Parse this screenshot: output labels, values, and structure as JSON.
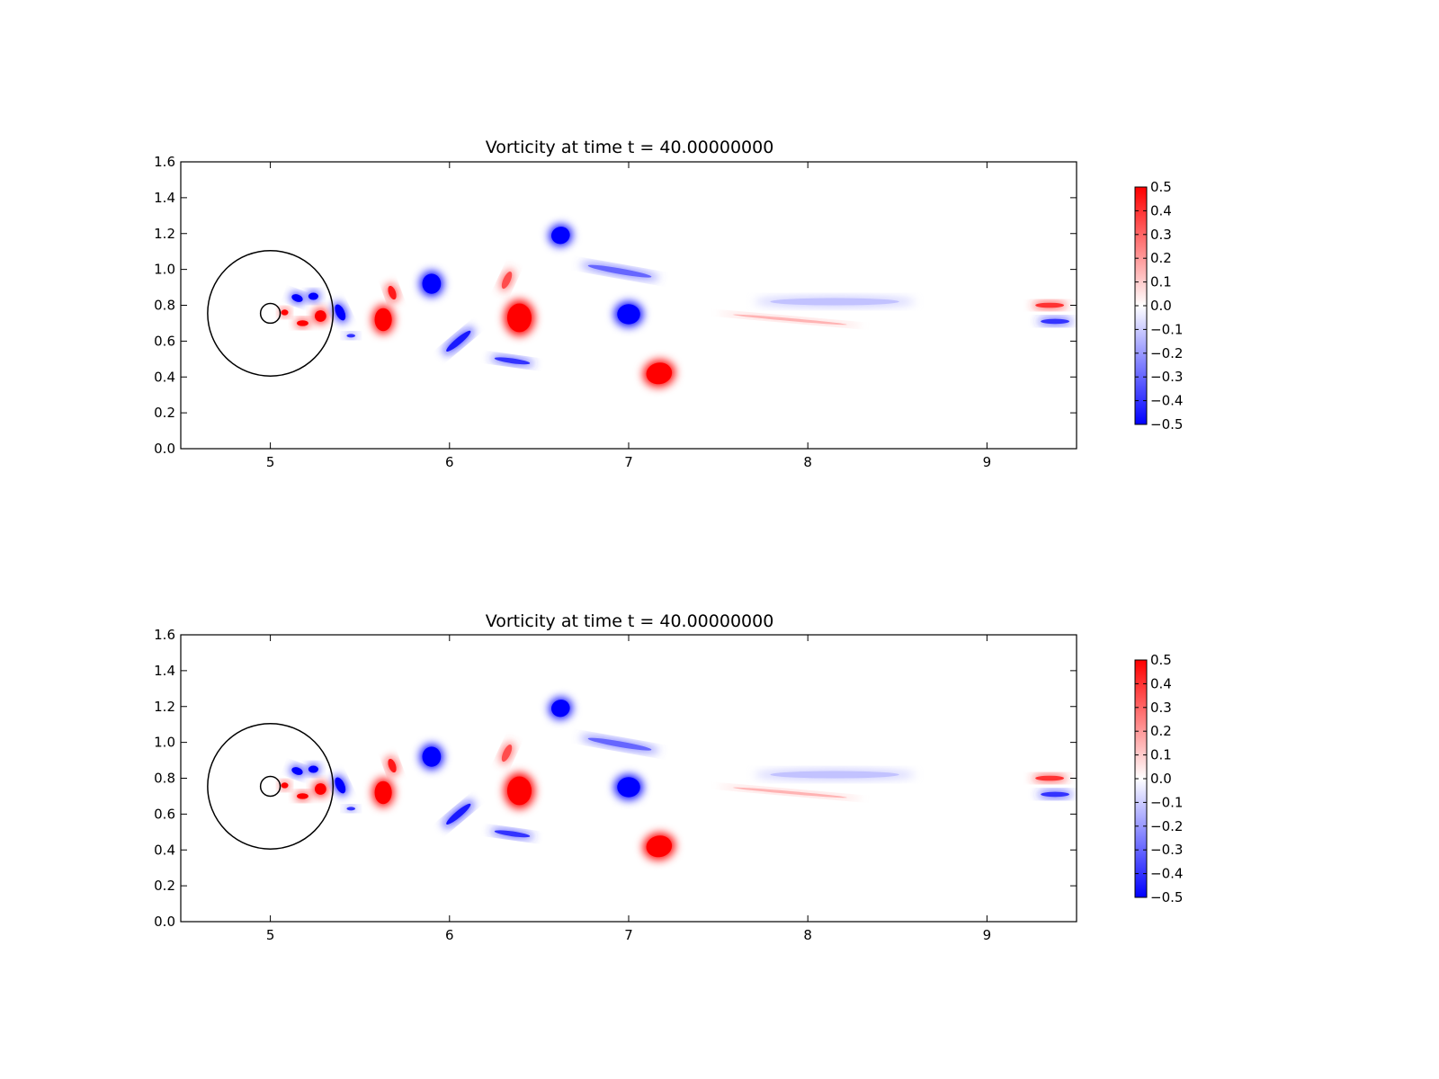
{
  "chart_data": [
    {
      "type": "heatmap",
      "title": "Vorticity at time t =    40.00000000",
      "xlabel": "",
      "ylabel": "",
      "xlim": [
        4.5,
        9.5
      ],
      "ylim": [
        0.0,
        1.6
      ],
      "x_ticks": [
        5,
        6,
        7,
        8,
        9
      ],
      "y_ticks": [
        0.0,
        0.2,
        0.4,
        0.6,
        0.8,
        1.0,
        1.2,
        1.4,
        1.6
      ],
      "x_tick_labels": [
        "5",
        "6",
        "7",
        "8",
        "9"
      ],
      "y_tick_labels": [
        "0.0",
        "0.2",
        "0.4",
        "0.6",
        "0.8",
        "1.0",
        "1.2",
        "1.4",
        "1.6"
      ],
      "grid": false,
      "colormap": "bwr",
      "colors": {
        "negative": "#0000ff",
        "zero": "#ffffff",
        "positive": "#ff0000"
      },
      "colorbar": {
        "range": [
          -0.5,
          0.5
        ],
        "ticks": [
          -0.5,
          -0.4,
          -0.3,
          -0.2,
          -0.1,
          0.0,
          0.1,
          0.2,
          0.3,
          0.4,
          0.5
        ],
        "tick_labels": [
          "−0.5",
          "−0.4",
          "−0.3",
          "−0.2",
          "−0.1",
          "0.0",
          "0.1",
          "0.2",
          "0.3",
          "0.4",
          "0.5"
        ],
        "placement": "right"
      },
      "circles": [
        {
          "center": [
            5.0,
            0.755
          ],
          "radius": 0.35
        },
        {
          "center": [
            5.0,
            0.755
          ],
          "radius": 0.055
        }
      ],
      "vortices": [
        {
          "x": 5.08,
          "y": 0.76,
          "w": 0.05,
          "h": 0.04,
          "vorticity": 0.5,
          "angle": 0
        },
        {
          "x": 5.15,
          "y": 0.84,
          "w": 0.08,
          "h": 0.05,
          "vorticity": -0.5,
          "angle": -20
        },
        {
          "x": 5.24,
          "y": 0.85,
          "w": 0.07,
          "h": 0.05,
          "vorticity": -0.5,
          "angle": 0
        },
        {
          "x": 5.28,
          "y": 0.74,
          "w": 0.08,
          "h": 0.08,
          "vorticity": 0.5,
          "angle": 0
        },
        {
          "x": 5.18,
          "y": 0.7,
          "w": 0.08,
          "h": 0.04,
          "vorticity": 0.5,
          "angle": 0
        },
        {
          "x": 5.39,
          "y": 0.76,
          "w": 0.06,
          "h": 0.12,
          "vorticity": -0.5,
          "angle": 25
        },
        {
          "x": 5.45,
          "y": 0.63,
          "w": 0.06,
          "h": 0.025,
          "vorticity": -0.4,
          "angle": 0
        },
        {
          "x": 5.63,
          "y": 0.72,
          "w": 0.12,
          "h": 0.16,
          "vorticity": 0.5,
          "angle": 0
        },
        {
          "x": 5.68,
          "y": 0.87,
          "w": 0.05,
          "h": 0.1,
          "vorticity": 0.45,
          "angle": 20
        },
        {
          "x": 5.9,
          "y": 0.92,
          "w": 0.13,
          "h": 0.14,
          "vorticity": -0.5,
          "angle": 0
        },
        {
          "x": 6.05,
          "y": 0.6,
          "w": 0.22,
          "h": 0.045,
          "vorticity": -0.45,
          "angle": 40
        },
        {
          "x": 6.35,
          "y": 0.49,
          "w": 0.25,
          "h": 0.035,
          "vorticity": -0.4,
          "angle": -8
        },
        {
          "x": 6.39,
          "y": 0.73,
          "w": 0.17,
          "h": 0.2,
          "vorticity": 0.5,
          "angle": 0
        },
        {
          "x": 6.32,
          "y": 0.94,
          "w": 0.05,
          "h": 0.13,
          "vorticity": 0.35,
          "angle": -25
        },
        {
          "x": 6.62,
          "y": 1.19,
          "w": 0.13,
          "h": 0.12,
          "vorticity": -0.5,
          "angle": 15
        },
        {
          "x": 6.95,
          "y": 0.99,
          "w": 0.45,
          "h": 0.04,
          "vorticity": -0.3,
          "angle": -10
        },
        {
          "x": 7.0,
          "y": 0.75,
          "w": 0.16,
          "h": 0.14,
          "vorticity": -0.5,
          "angle": 0
        },
        {
          "x": 7.17,
          "y": 0.42,
          "w": 0.18,
          "h": 0.15,
          "vorticity": 0.5,
          "angle": 10
        },
        {
          "x": 8.15,
          "y": 0.82,
          "w": 0.9,
          "h": 0.05,
          "vorticity": -0.12,
          "angle": 0
        },
        {
          "x": 7.9,
          "y": 0.72,
          "w": 0.8,
          "h": 0.02,
          "vorticity": 0.15,
          "angle": -5
        },
        {
          "x": 9.35,
          "y": 0.8,
          "w": 0.2,
          "h": 0.035,
          "vorticity": 0.4,
          "angle": 0
        },
        {
          "x": 9.38,
          "y": 0.71,
          "w": 0.2,
          "h": 0.035,
          "vorticity": -0.4,
          "angle": 0
        }
      ]
    },
    {
      "type": "heatmap",
      "title": "Vorticity at time t =    40.00000000",
      "xlabel": "",
      "ylabel": "",
      "xlim": [
        4.5,
        9.5
      ],
      "ylim": [
        0.0,
        1.6
      ],
      "x_ticks": [
        5,
        6,
        7,
        8,
        9
      ],
      "y_ticks": [
        0.0,
        0.2,
        0.4,
        0.6,
        0.8,
        1.0,
        1.2,
        1.4,
        1.6
      ],
      "x_tick_labels": [
        "5",
        "6",
        "7",
        "8",
        "9"
      ],
      "y_tick_labels": [
        "0.0",
        "0.2",
        "0.4",
        "0.6",
        "0.8",
        "1.0",
        "1.2",
        "1.4",
        "1.6"
      ],
      "grid": false,
      "colormap": "bwr",
      "colors": {
        "negative": "#0000ff",
        "zero": "#ffffff",
        "positive": "#ff0000"
      },
      "colorbar": {
        "range": [
          -0.5,
          0.5
        ],
        "ticks": [
          -0.5,
          -0.4,
          -0.3,
          -0.2,
          -0.1,
          0.0,
          0.1,
          0.2,
          0.3,
          0.4,
          0.5
        ],
        "tick_labels": [
          "−0.5",
          "−0.4",
          "−0.3",
          "−0.2",
          "−0.1",
          "0.0",
          "0.1",
          "0.2",
          "0.3",
          "0.4",
          "0.5"
        ],
        "placement": "right"
      },
      "circles": [
        {
          "center": [
            5.0,
            0.755
          ],
          "radius": 0.35
        },
        {
          "center": [
            5.0,
            0.755
          ],
          "radius": 0.055
        }
      ],
      "vortices": [
        {
          "x": 5.08,
          "y": 0.76,
          "w": 0.05,
          "h": 0.04,
          "vorticity": 0.5,
          "angle": 0
        },
        {
          "x": 5.15,
          "y": 0.84,
          "w": 0.08,
          "h": 0.05,
          "vorticity": -0.5,
          "angle": -20
        },
        {
          "x": 5.24,
          "y": 0.85,
          "w": 0.07,
          "h": 0.05,
          "vorticity": -0.5,
          "angle": 0
        },
        {
          "x": 5.28,
          "y": 0.74,
          "w": 0.08,
          "h": 0.08,
          "vorticity": 0.5,
          "angle": 0
        },
        {
          "x": 5.18,
          "y": 0.7,
          "w": 0.08,
          "h": 0.04,
          "vorticity": 0.5,
          "angle": 0
        },
        {
          "x": 5.39,
          "y": 0.76,
          "w": 0.06,
          "h": 0.12,
          "vorticity": -0.5,
          "angle": 25
        },
        {
          "x": 5.45,
          "y": 0.63,
          "w": 0.06,
          "h": 0.025,
          "vorticity": -0.4,
          "angle": 0
        },
        {
          "x": 5.63,
          "y": 0.72,
          "w": 0.12,
          "h": 0.16,
          "vorticity": 0.5,
          "angle": 0
        },
        {
          "x": 5.68,
          "y": 0.87,
          "w": 0.05,
          "h": 0.1,
          "vorticity": 0.45,
          "angle": 20
        },
        {
          "x": 5.9,
          "y": 0.92,
          "w": 0.13,
          "h": 0.14,
          "vorticity": -0.5,
          "angle": 0
        },
        {
          "x": 6.05,
          "y": 0.6,
          "w": 0.22,
          "h": 0.045,
          "vorticity": -0.45,
          "angle": 40
        },
        {
          "x": 6.35,
          "y": 0.49,
          "w": 0.25,
          "h": 0.035,
          "vorticity": -0.4,
          "angle": -8
        },
        {
          "x": 6.39,
          "y": 0.73,
          "w": 0.17,
          "h": 0.2,
          "vorticity": 0.5,
          "angle": 0
        },
        {
          "x": 6.32,
          "y": 0.94,
          "w": 0.05,
          "h": 0.13,
          "vorticity": 0.35,
          "angle": -25
        },
        {
          "x": 6.62,
          "y": 1.19,
          "w": 0.13,
          "h": 0.12,
          "vorticity": -0.5,
          "angle": 15
        },
        {
          "x": 6.95,
          "y": 0.99,
          "w": 0.45,
          "h": 0.04,
          "vorticity": -0.3,
          "angle": -10
        },
        {
          "x": 7.0,
          "y": 0.75,
          "w": 0.16,
          "h": 0.14,
          "vorticity": -0.5,
          "angle": 0
        },
        {
          "x": 7.17,
          "y": 0.42,
          "w": 0.18,
          "h": 0.15,
          "vorticity": 0.5,
          "angle": 10
        },
        {
          "x": 8.15,
          "y": 0.82,
          "w": 0.9,
          "h": 0.05,
          "vorticity": -0.12,
          "angle": 0
        },
        {
          "x": 7.9,
          "y": 0.72,
          "w": 0.8,
          "h": 0.02,
          "vorticity": 0.15,
          "angle": -5
        },
        {
          "x": 9.35,
          "y": 0.8,
          "w": 0.2,
          "h": 0.035,
          "vorticity": 0.4,
          "angle": 0
        },
        {
          "x": 9.38,
          "y": 0.71,
          "w": 0.2,
          "h": 0.035,
          "vorticity": -0.4,
          "angle": 0
        }
      ]
    }
  ]
}
